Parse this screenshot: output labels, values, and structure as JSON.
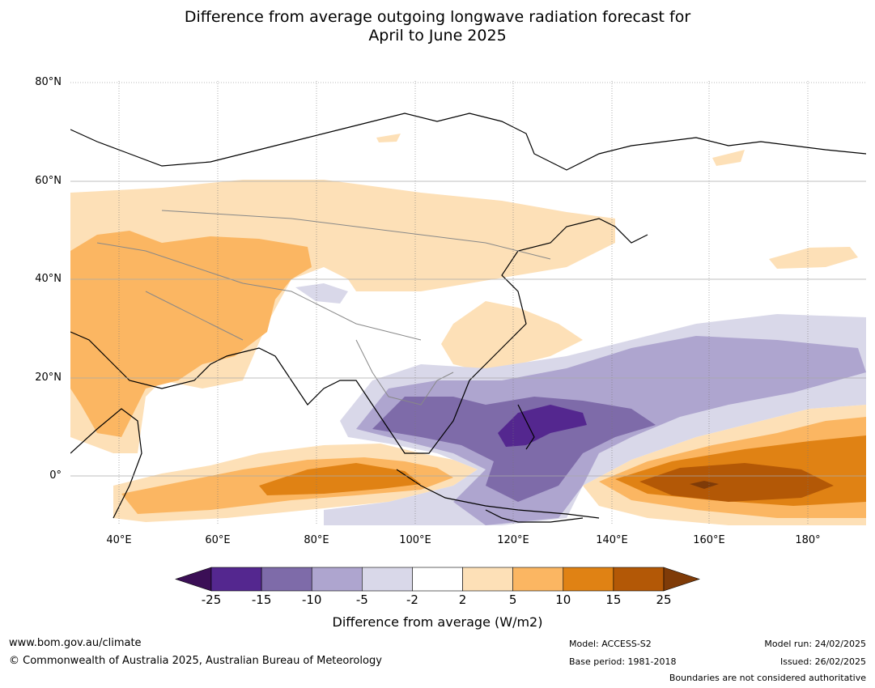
{
  "title_line1": "Difference from average outgoing longwave radiation forecast for",
  "title_line2": "April to June 2025",
  "lat_labels": [
    "80°N",
    "60°N",
    "40°N",
    "20°N",
    "0°"
  ],
  "lon_labels": [
    "40°E",
    "60°E",
    "80°E",
    "100°E",
    "120°E",
    "140°E",
    "160°E",
    "180°"
  ],
  "colorbar": {
    "ticks": [
      "-25",
      "-15",
      "-10",
      "-5",
      "-2",
      "2",
      "5",
      "10",
      "15",
      "25"
    ],
    "colors": [
      "#3b0f56",
      "#54278f",
      "#7e6ba9",
      "#aea5cf",
      "#d9d8e9",
      "#ffffff",
      "#fde0b7",
      "#fbb662",
      "#e08214",
      "#b35806",
      "#7f3b08"
    ],
    "label": "Difference from average (W/m2)"
  },
  "footer": {
    "url": "www.bom.gov.au/climate",
    "copyright": "© Commonwealth of Australia 2025, Australian Bureau of Meteorology",
    "model": "Model: ACCESS-S2",
    "base_period": "Base period: 1981-2018",
    "model_run": "Model run: 24/02/2025",
    "issued": "Issued: 26/02/2025",
    "disclaimer": "Boundaries are not considered authoritative"
  }
}
